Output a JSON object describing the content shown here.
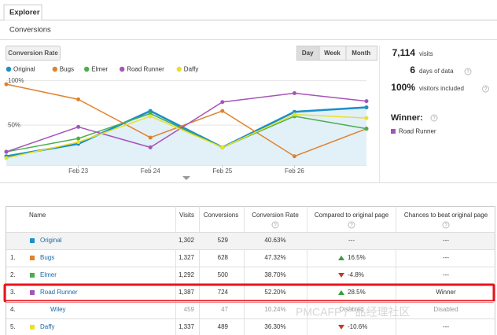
{
  "tab": "Explorer",
  "section": "Conversions",
  "metric_button": "Conversion Rate",
  "period_buttons": [
    "Day",
    "Week",
    "Month"
  ],
  "chart_data": {
    "type": "line",
    "categories": [
      null,
      "Feb 23",
      "Feb 24",
      "Feb 25",
      "Feb 26",
      null
    ],
    "series": [
      {
        "name": "Original",
        "color": "#1a8fc9",
        "values": [
          15,
          29,
          66,
          25,
          65,
          70
        ],
        "area": true
      },
      {
        "name": "Bugs",
        "color": "#e0822c",
        "values": [
          96,
          79,
          36,
          66,
          15,
          46
        ]
      },
      {
        "name": "Elmer",
        "color": "#4cae4c",
        "values": [
          20,
          35,
          63,
          25,
          60,
          46
        ]
      },
      {
        "name": "Road Runner",
        "color": "#a455b8",
        "values": [
          20,
          48,
          25,
          76,
          86,
          77
        ]
      },
      {
        "name": "Daffy",
        "color": "#e8e12a",
        "values": [
          13,
          31,
          60,
          25,
          62,
          58
        ]
      }
    ],
    "ylim": [
      5,
      105
    ],
    "yticks": [
      {
        "value": 50,
        "label": "50%"
      },
      {
        "value": 100,
        "label": "100%"
      }
    ],
    "grid": true,
    "legend": "top"
  },
  "summary": [
    {
      "value": "7,114",
      "label": "visits"
    },
    {
      "value": "6",
      "label": "days of data"
    },
    {
      "value": "100%",
      "label": "visitors included"
    }
  ],
  "winner": {
    "title": "Winner:",
    "name": "Road Runner",
    "color": "#a455b8"
  },
  "table": {
    "columns": [
      "Name",
      "Visits",
      "Conversions",
      "Conversion Rate",
      "Compared to original page",
      "Chances to beat original page"
    ],
    "rows": [
      {
        "name": "Original",
        "color": "#1a8fc9",
        "visits": "1,302",
        "conversions": "529",
        "rate": "40.63%",
        "compared": "---",
        "chances": "---"
      },
      {
        "index": "1.",
        "name": "Bugs",
        "color": "#e0822c",
        "visits": "1,327",
        "conversions": "628",
        "rate": "47.32%",
        "direction": "up",
        "compared": "16.5%",
        "chances": "---"
      },
      {
        "index": "2.",
        "name": "Elmer",
        "color": "#4cae4c",
        "visits": "1,292",
        "conversions": "500",
        "rate": "38.70%",
        "direction": "down",
        "compared": "-4.8%",
        "chances": "---"
      },
      {
        "index": "3.",
        "name": "Road Runner",
        "color": "#a455b8",
        "visits": "1,387",
        "conversions": "724",
        "rate": "52.20%",
        "direction": "up",
        "compared": "28.5%",
        "chances": "Winner",
        "highlight": true
      },
      {
        "index": "4.",
        "name": "Wiley",
        "visits": "459",
        "conversions": "47",
        "rate": "10.24%",
        "compared": "Disabled",
        "chances": "Disabled",
        "disabled": true
      },
      {
        "index": "5.",
        "name": "Daffy",
        "color": "#e8e12a",
        "visits": "1,337",
        "conversions": "489",
        "rate": "36.30%",
        "direction": "down",
        "compared": "-10.6%",
        "chances": "---"
      }
    ]
  },
  "watermark": "PMCAFF 产品经理社区"
}
